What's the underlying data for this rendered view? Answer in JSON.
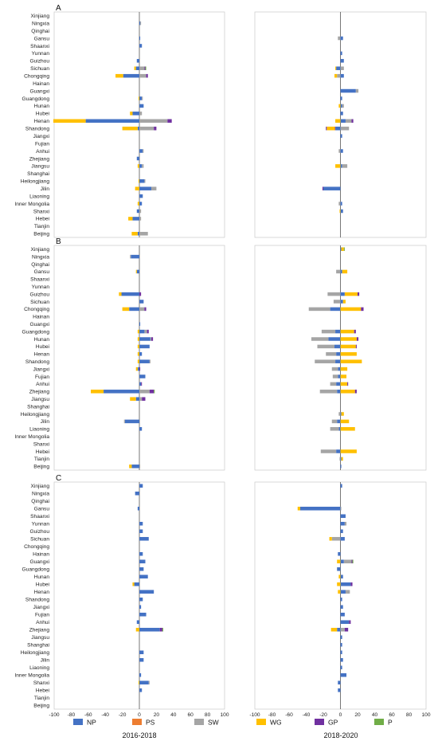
{
  "chart_data": {
    "type": "bar",
    "orientation": "horizontal-stacked",
    "xlim": [
      -100,
      100
    ],
    "x_ticks": [
      "-100",
      "-80",
      "-60",
      "-40",
      "-20",
      "0",
      "20",
      "40",
      "60",
      "80",
      "100"
    ],
    "periods": [
      "2016-2018",
      "2018-2020"
    ],
    "legend": [
      {
        "name": "NP",
        "color": "#4472C4"
      },
      {
        "name": "PS",
        "color": "#ED7D31"
      },
      {
        "name": "SW",
        "color": "#A5A5A5"
      },
      {
        "name": "WG",
        "color": "#FFC000"
      },
      {
        "name": "GP",
        "color": "#7030A0"
      },
      {
        "name": "P",
        "color": "#70AD47"
      }
    ],
    "panels": [
      {
        "label": "A",
        "provinces": [
          "Xinjiang",
          "Ningxia",
          "Qinghai",
          "Gansu",
          "Shaanxi",
          "Yunnan",
          "Guizhou",
          "Sichuan",
          "Chongqing",
          "Hainan",
          "Guangxi",
          "Guangdong",
          "Hunan",
          "Hubei",
          "Henan",
          "Shandong",
          "Jiangxi",
          "Fujian",
          "Anhui",
          "Zhejiang",
          "Jiangsu",
          "Shanghai",
          "Heilongjiang",
          "Jilin",
          "Liaoning",
          "Inner Mongolia",
          "Shanxi",
          "Hebei",
          "Tianjin",
          "Beijing"
        ],
        "left": [
          {
            "province": "Ningxia",
            "NP": 1,
            "SW": 1
          },
          {
            "province": "Gansu",
            "NP": 1
          },
          {
            "province": "Shaanxi",
            "NP": 3
          },
          {
            "province": "Guizhou",
            "NP": -3
          },
          {
            "province": "Sichuan",
            "NP": -4,
            "WG": -2,
            "SW": 6,
            "GP": 1,
            "P": 1
          },
          {
            "province": "Chongqing",
            "NP": -19,
            "WG": -9,
            "SW": 8,
            "GP": 2
          },
          {
            "province": "Guangdong",
            "NP": 3,
            "SW": 1,
            "WG": -1
          },
          {
            "province": "Hunan",
            "NP": 5
          },
          {
            "province": "Hubei",
            "NP": -8,
            "WG": -3,
            "SW": 3
          },
          {
            "province": "Henan",
            "NP": -63,
            "WG": -38,
            "SW": 33,
            "GP": 5
          },
          {
            "province": "Shandong",
            "NP": -2,
            "WG": -18,
            "SW": 17,
            "GP": 3
          },
          {
            "province": "Anhui",
            "NP": 4,
            "SW": 1
          },
          {
            "province": "Zhejiang",
            "NP": -3
          },
          {
            "province": "Jiangsu",
            "NP": 3,
            "SW": 2,
            "WG": -2
          },
          {
            "province": "Heilongjiang",
            "NP": 6,
            "SW": 1,
            "WG": -1
          },
          {
            "province": "Jilin",
            "NP": 14,
            "SW": 6,
            "WG": -5
          },
          {
            "province": "Liaoning",
            "NP": 4
          },
          {
            "province": "Inner Mongolia",
            "NP": 3,
            "WG": -2
          },
          {
            "province": "Shanxi",
            "NP": -3,
            "SW": 2
          },
          {
            "province": "Hebei",
            "NP": -8,
            "WG": -5,
            "SW": 2
          },
          {
            "province": "Beijing",
            "NP": -2,
            "WG": -7,
            "SW": 10
          }
        ],
        "right": [
          {
            "province": "Gansu",
            "NP": 3,
            "SW": -3
          },
          {
            "province": "Yunnan",
            "NP": 2
          },
          {
            "province": "Guizhou",
            "NP": 4
          },
          {
            "province": "Sichuan",
            "NP": -5,
            "SW": 4,
            "WG": -1
          },
          {
            "province": "Chongqing",
            "NP": 4,
            "SW": -4,
            "WG": -3
          },
          {
            "province": "Guangxi",
            "NP": 18,
            "SW": 3
          },
          {
            "province": "Guangdong",
            "NP": 2
          },
          {
            "province": "Hunan",
            "NP": 2,
            "WG": -2,
            "SW": 2
          },
          {
            "province": "Hubei",
            "NP": 3
          },
          {
            "province": "Henan",
            "NP": 6,
            "SW": 7,
            "WG": -6,
            "GP": 2
          },
          {
            "province": "Shandong",
            "NP": -6,
            "WG": -9,
            "SW": 10,
            "GP": -1,
            "PS": -1
          },
          {
            "province": "Jiangxi",
            "NP": 2
          },
          {
            "province": "Anhui",
            "NP": 3,
            "SW": -2
          },
          {
            "province": "Jiangsu",
            "NP": 2,
            "SW": 6,
            "WG": -6
          },
          {
            "province": "Jilin",
            "NP": -20,
            "GP": -1
          },
          {
            "province": "Inner Mongolia",
            "NP": 2,
            "SW": -2
          },
          {
            "province": "Shanxi",
            "NP": 3,
            "WG": -1
          }
        ]
      },
      {
        "label": "B",
        "provinces": [
          "Xinjiang",
          "Ningxia",
          "Qinghai",
          "Gansu",
          "Shaanxi",
          "Yunnan",
          "Guizhou",
          "Sichuan",
          "Chongqing",
          "Hainan",
          "Guangxi",
          "Guangdong",
          "Hunan",
          "Hubei",
          "Henan",
          "Shandong",
          "Jiangxi",
          "Fujian",
          "Anhui",
          "Zhejiang",
          "Jiangsu",
          "Shanghai",
          "Heilongjiang",
          "Jilin",
          "Liaoning",
          "Inner Mongolia",
          "Shanxi",
          "Hebei",
          "Tianjin",
          "Beijing"
        ],
        "left": [
          {
            "province": "Ningxia",
            "NP": -10,
            "SW": -1
          },
          {
            "province": "Gansu",
            "NP": -3,
            "WG": -1
          },
          {
            "province": "Guizhou",
            "NP": -21,
            "WG": -3,
            "GP": 2
          },
          {
            "province": "Sichuan",
            "NP": 5
          },
          {
            "province": "Chongqing",
            "NP": -12,
            "WG": -8,
            "SW": 6,
            "GP": 2
          },
          {
            "province": "Guangxi",
            "NP": 1
          },
          {
            "province": "Guangdong",
            "NP": 6,
            "SW": 3,
            "WG": -2,
            "GP": 2
          },
          {
            "province": "Hunan",
            "NP": 13,
            "SW": 1,
            "WG": -2,
            "GP": 2
          },
          {
            "province": "Hubei",
            "NP": 12,
            "WG": -2
          },
          {
            "province": "Henan",
            "NP": 3,
            "WG": -2
          },
          {
            "province": "Shandong",
            "NP": 12,
            "WG": -2,
            "SW": 1
          },
          {
            "province": "Jiangxi",
            "NP": -2,
            "WG": -2,
            "GP": 1
          },
          {
            "province": "Fujian",
            "NP": 7
          },
          {
            "province": "Anhui",
            "NP": 2,
            "GP": 1
          },
          {
            "province": "Zhejiang",
            "NP": -42,
            "WG": -15,
            "SW": 12,
            "GP": 5,
            "P": 1
          },
          {
            "province": "Jiangsu",
            "NP": -4,
            "WG": -7,
            "SW": 3,
            "GP": 4
          },
          {
            "province": "Jilin",
            "NP": -17,
            "SW": -1
          },
          {
            "province": "Liaoning",
            "NP": 3
          },
          {
            "province": "Beijing",
            "NP": -9,
            "WG": -3,
            "SW": 1
          }
        ],
        "right": [
          {
            "province": "Xinjiang",
            "NP": 1,
            "WG": 3,
            "P": 1
          },
          {
            "province": "Gansu",
            "SW": -5,
            "NP": 2,
            "WG": 6
          },
          {
            "province": "Guizhou",
            "NP": 5,
            "WG": 15,
            "SW": -15,
            "GP": 2
          },
          {
            "province": "Sichuan",
            "NP": 3,
            "SW": -8,
            "WG": 3
          },
          {
            "province": "Chongqing",
            "NP": -12,
            "SW": -25,
            "WG": 24,
            "GP": 3
          },
          {
            "province": "Guangdong",
            "NP": -6,
            "SW": -16,
            "WG": 16,
            "GP": 2
          },
          {
            "province": "Hunan",
            "NP": -14,
            "SW": -20,
            "WG": 19,
            "GP": 2
          },
          {
            "province": "Hubei",
            "NP": -7,
            "SW": -20,
            "WG": 18,
            "GP": 1
          },
          {
            "province": "Henan",
            "NP": -5,
            "SW": -12,
            "WG": 19
          },
          {
            "province": "Shandong",
            "NP": -6,
            "SW": -24,
            "WG": 25
          },
          {
            "province": "Jiangxi",
            "NP": -3,
            "SW": -7,
            "WG": 8
          },
          {
            "province": "Fujian",
            "NP": -3,
            "SW": -6,
            "WG": 7
          },
          {
            "province": "Anhui",
            "NP": -5,
            "SW": -7,
            "WG": 8,
            "GP": 1
          },
          {
            "province": "Zhejiang",
            "NP": -4,
            "SW": -20,
            "WG": 17,
            "GP": 2
          },
          {
            "province": "Heilongjiang",
            "NP": 1,
            "SW": -2,
            "WG": 3
          },
          {
            "province": "Jilin",
            "NP": -4,
            "SW": -6,
            "WG": 10
          },
          {
            "province": "Liaoning",
            "NP": -2,
            "SW": -10,
            "WG": 17
          },
          {
            "province": "Hebei",
            "NP": -5,
            "SW": -18,
            "WG": 19
          },
          {
            "province": "Tianjin",
            "NP": 1,
            "SW": -1,
            "WG": 2
          },
          {
            "province": "Beijing",
            "NP": 1
          }
        ]
      },
      {
        "label": "C",
        "provinces": [
          "Xinjiang",
          "Ningxia",
          "Qinghai",
          "Gansu",
          "Shaanxi",
          "Yunnan",
          "Guizhou",
          "Sichuan",
          "Chongqing",
          "Hainan",
          "Guangxi",
          "Guangdong",
          "Hunan",
          "Hubei",
          "Henan",
          "Shandong",
          "Jiangxi",
          "Fujian",
          "Anhui",
          "Zhejiang",
          "Jiangsu",
          "Shanghai",
          "Heilongjiang",
          "Jilin",
          "Liaoning",
          "Inner Mongolia",
          "Shanxi",
          "Hebei",
          "Tianjin",
          "Beijing"
        ],
        "left": [
          {
            "province": "Xinjiang",
            "NP": 4
          },
          {
            "province": "Ningxia",
            "NP": -5
          },
          {
            "province": "Gansu",
            "NP": -2
          },
          {
            "province": "Yunnan",
            "NP": 4
          },
          {
            "province": "Guizhou",
            "NP": 4
          },
          {
            "province": "Sichuan",
            "NP": 11
          },
          {
            "province": "Hainan",
            "NP": 4
          },
          {
            "province": "Guangxi",
            "NP": 7
          },
          {
            "province": "Guangdong",
            "NP": 5
          },
          {
            "province": "Hunan",
            "NP": 10
          },
          {
            "province": "Hubei",
            "NP": -6,
            "WG": -2
          },
          {
            "province": "Henan",
            "NP": 17
          },
          {
            "province": "Shandong",
            "NP": 4
          },
          {
            "province": "Jiangxi",
            "NP": 2
          },
          {
            "province": "Fujian",
            "NP": 8
          },
          {
            "province": "Anhui",
            "NP": -3
          },
          {
            "province": "Zhejiang",
            "NP": 24,
            "WG": -4,
            "GP": 3,
            "P": 1
          },
          {
            "province": "Heilongjiang",
            "NP": 5
          },
          {
            "province": "Jilin",
            "NP": 5
          },
          {
            "province": "Inner Mongolia",
            "NP": 2
          },
          {
            "province": "Shanxi",
            "NP": 11,
            "WG": -1,
            "SW": 1
          },
          {
            "province": "Hebei",
            "NP": 3
          }
        ],
        "right": [
          {
            "province": "Xinjiang",
            "NP": 2
          },
          {
            "province": "Gansu",
            "NP": -47,
            "WG": -3,
            "SW": 1
          },
          {
            "province": "Shaanxi",
            "NP": 6
          },
          {
            "province": "Yunnan",
            "NP": 5,
            "SW": 2
          },
          {
            "province": "Guizhou",
            "NP": 3
          },
          {
            "province": "Sichuan",
            "NP": 5,
            "SW": -10,
            "WG": -3
          },
          {
            "province": "Hainan",
            "NP": -3
          },
          {
            "province": "Guangxi",
            "NP": 4,
            "WG": -4,
            "SW": 9,
            "GP": 1,
            "P": 1
          },
          {
            "province": "Guangdong",
            "NP": -4
          },
          {
            "province": "Hunan",
            "NP": 3,
            "WG": -2
          },
          {
            "province": "Hubei",
            "NP": 12,
            "WG": -4,
            "GP": 2
          },
          {
            "province": "Henan",
            "NP": 6,
            "SW": 5,
            "WG": -3
          },
          {
            "province": "Shandong",
            "NP": 2
          },
          {
            "province": "Jiangxi",
            "NP": 3
          },
          {
            "province": "Fujian",
            "NP": 5
          },
          {
            "province": "Anhui",
            "NP": 10,
            "GP": 2
          },
          {
            "province": "Zhejiang",
            "NP": -4,
            "WG": -7,
            "SW": 5,
            "GP": 4
          },
          {
            "province": "Jiangsu",
            "NP": 2
          },
          {
            "province": "Shanghai",
            "NP": 2
          },
          {
            "province": "Heilongjiang",
            "NP": 2
          },
          {
            "province": "Jilin",
            "NP": 3
          },
          {
            "province": "Liaoning",
            "NP": 2
          },
          {
            "province": "Inner Mongolia",
            "NP": 7
          },
          {
            "province": "Shanxi",
            "NP": -3
          },
          {
            "province": "Hebei",
            "NP": -3
          }
        ]
      }
    ]
  }
}
